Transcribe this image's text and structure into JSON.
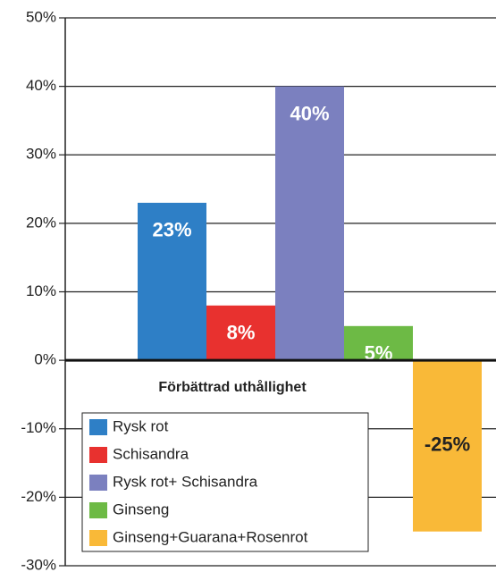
{
  "chart_data": {
    "type": "bar",
    "categories": [
      "Förbättrad uthållighet"
    ],
    "series": [
      {
        "name": "Rysk rot",
        "color": "#2e7fc6",
        "values": [
          23
        ],
        "value_labels": [
          "23%"
        ]
      },
      {
        "name": "Schisandra",
        "color": "#e8312f",
        "values": [
          8
        ],
        "value_labels": [
          "8%"
        ]
      },
      {
        "name": "Rysk rot+ Schisandra",
        "color": "#7b80bf",
        "values": [
          40
        ],
        "value_labels": [
          "40%"
        ]
      },
      {
        "name": "Ginseng",
        "color": "#6dba45",
        "values": [
          5
        ],
        "value_labels": [
          "5%"
        ]
      },
      {
        "name": "Ginseng+Guarana+Rosenrot",
        "color": "#f9b938",
        "values": [
          -25
        ],
        "value_labels": [
          "-25%"
        ]
      }
    ],
    "ylim": [
      -30,
      50
    ],
    "yticks": [
      {
        "value": -30,
        "label": "-30%"
      },
      {
        "value": -20,
        "label": "-20%"
      },
      {
        "value": -10,
        "label": "-10%"
      },
      {
        "value": 0,
        "label": "0%"
      },
      {
        "value": 10,
        "label": "10%"
      },
      {
        "value": 20,
        "label": "20%"
      },
      {
        "value": 30,
        "label": "30%"
      },
      {
        "value": 40,
        "label": "40%"
      },
      {
        "value": 50,
        "label": "50%"
      }
    ],
    "grid": true,
    "legend": "bottom-left"
  }
}
